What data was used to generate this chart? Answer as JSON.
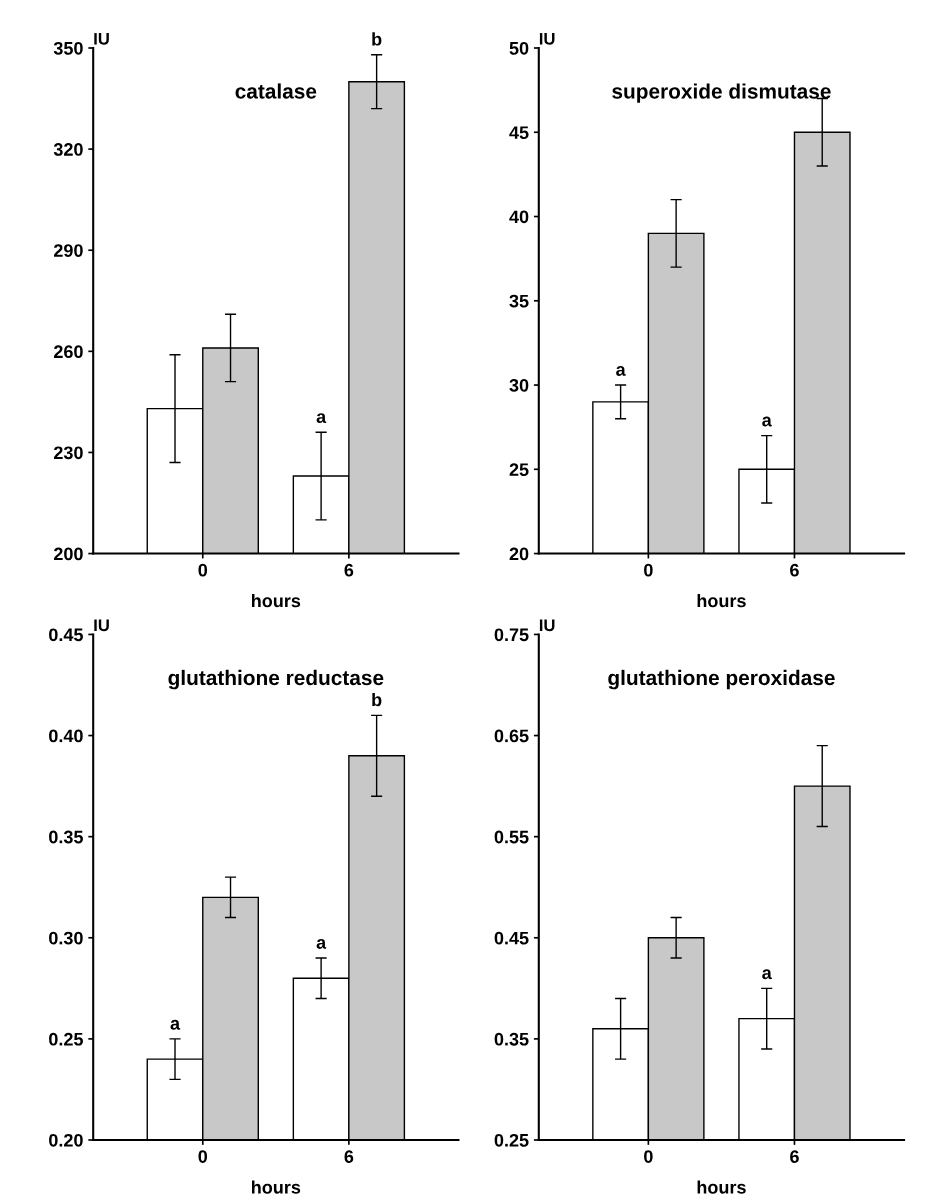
{
  "chart_data": [
    {
      "type": "bar",
      "title": "catalase",
      "ylabel": "IU",
      "xlabel": "hours",
      "categories": [
        "0",
        "6"
      ],
      "series": [
        {
          "color": "#ffffff",
          "values": [
            243,
            223
          ],
          "errors": [
            16,
            13
          ],
          "value_labels": [
            null,
            "a"
          ]
        },
        {
          "color": "#c8c8c8",
          "values": [
            261,
            340
          ],
          "errors": [
            10,
            8
          ],
          "value_labels": [
            null,
            "b"
          ]
        }
      ],
      "ylim": [
        200,
        350
      ],
      "yticks": [
        200,
        230,
        260,
        290,
        320,
        350
      ],
      "grid": false
    },
    {
      "type": "bar",
      "title": "superoxide dismutase",
      "ylabel": "IU",
      "xlabel": "hours",
      "categories": [
        "0",
        "6"
      ],
      "series": [
        {
          "color": "#ffffff",
          "values": [
            29,
            25
          ],
          "errors": [
            1,
            2
          ],
          "value_labels": [
            "a",
            "a"
          ]
        },
        {
          "color": "#c8c8c8",
          "values": [
            39,
            45
          ],
          "errors": [
            2,
            2
          ],
          "value_labels": [
            null,
            null
          ]
        }
      ],
      "ylim": [
        20,
        50
      ],
      "yticks": [
        20,
        25,
        30,
        35,
        40,
        45,
        50
      ],
      "grid": false
    },
    {
      "type": "bar",
      "title": "glutathione reductase",
      "ylabel": "IU",
      "xlabel": "hours",
      "categories": [
        "0",
        "6"
      ],
      "series": [
        {
          "color": "#ffffff",
          "values": [
            0.24,
            0.28
          ],
          "errors": [
            0.01,
            0.01
          ],
          "value_labels": [
            "a",
            "a"
          ]
        },
        {
          "color": "#c8c8c8",
          "values": [
            0.32,
            0.39
          ],
          "errors": [
            0.01,
            0.02
          ],
          "value_labels": [
            null,
            "b"
          ]
        }
      ],
      "ylim": [
        0.2,
        0.45
      ],
      "yticks": [
        {
          "value": 0.2,
          "label": "0.20"
        },
        0.25,
        {
          "value": 0.3,
          "label": "0.30"
        },
        0.35,
        {
          "value": 0.4,
          "label": "0.40"
        },
        0.45
      ],
      "grid": false
    },
    {
      "type": "bar",
      "title": "glutathione peroxidase",
      "ylabel": "IU",
      "xlabel": "hours",
      "categories": [
        "0",
        "6"
      ],
      "series": [
        {
          "color": "#ffffff",
          "values": [
            0.36,
            0.37
          ],
          "errors": [
            0.03,
            0.03
          ],
          "value_labels": [
            null,
            "a"
          ]
        },
        {
          "color": "#c8c8c8",
          "values": [
            0.45,
            0.6
          ],
          "errors": [
            0.02,
            0.04
          ],
          "value_labels": [
            null,
            null
          ]
        }
      ],
      "ylim": [
        0.25,
        0.75
      ],
      "yticks": [
        0.25,
        0.35,
        0.45,
        0.55,
        0.65,
        0.75
      ],
      "grid": false
    }
  ]
}
